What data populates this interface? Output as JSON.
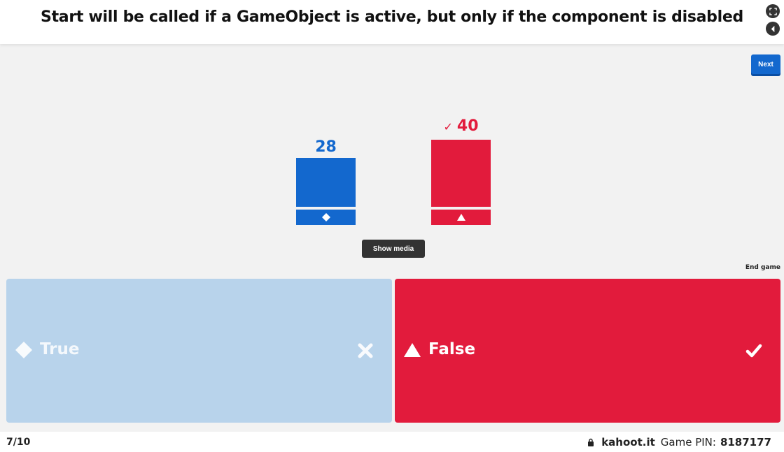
{
  "question": "Start will be called if a GameObject is active, but only if the component is disabled",
  "controls": {
    "fullscreen_icon": "fullscreen-icon",
    "sound_icon": "sound-icon",
    "next_label": "Next",
    "show_media_label": "Show media",
    "end_game_label": "End game"
  },
  "results": {
    "blue": {
      "count": "28",
      "shape_icon": "diamond-icon",
      "color": "#1368ce"
    },
    "red": {
      "count": "40",
      "check": "✓",
      "shape_icon": "triangle-icon",
      "color": "#e21b3c"
    }
  },
  "answers": [
    {
      "label": "True",
      "shape_icon": "diamond-icon",
      "mark_icon": "cross-icon",
      "color": "#b8d3eb",
      "correct": false
    },
    {
      "label": "False",
      "shape_icon": "triangle-icon",
      "mark_icon": "check-icon",
      "color": "#e21b3c",
      "correct": true
    }
  ],
  "footer": {
    "progress": "7/10",
    "lock_icon": "lock-icon",
    "domain": "kahoot.it",
    "pin_label": "Game PIN:",
    "pin": "8187177"
  }
}
